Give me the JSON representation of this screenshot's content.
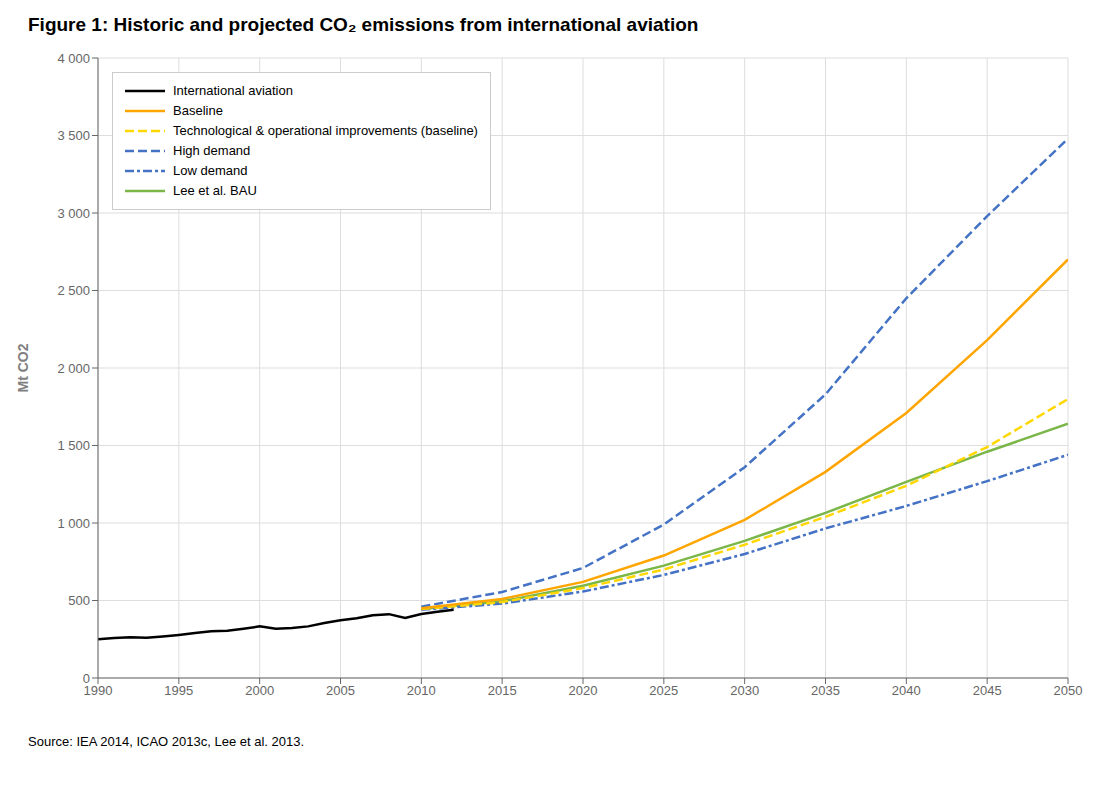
{
  "chart_data": {
    "type": "line",
    "title": "Figure 1: Historic and projected CO₂ emissions from international aviation",
    "annotations": [
      "Source: IEA 2014, ICAO 2013c, Lee et al. 2013."
    ],
    "y_label": "Mt CO2",
    "xlim": [
      1990,
      2050
    ],
    "ylim": [
      0,
      4000
    ],
    "xticks": [
      1990,
      1995,
      2000,
      2005,
      2010,
      2015,
      2020,
      2025,
      2030,
      2035,
      2040,
      2045,
      2050
    ],
    "yticks": [
      0,
      500,
      {
        "value": 1000,
        "label": "1 000"
      },
      {
        "value": 1500,
        "label": "1 500"
      },
      {
        "value": 2000,
        "label": "2 000"
      },
      {
        "value": 2500,
        "label": "2 500"
      },
      {
        "value": 3000,
        "label": "3 000"
      },
      {
        "value": 3500,
        "label": "3 500"
      },
      {
        "value": 4000,
        "label": "4 000"
      }
    ],
    "grid": true,
    "legend": "upper left",
    "series": [
      {
        "name": "International aviation",
        "color": "#000000",
        "line_style": "solid",
        "x": [
          1990,
          1991,
          1992,
          1993,
          1994,
          1995,
          1996,
          1997,
          1998,
          1999,
          2000,
          2001,
          2002,
          2003,
          2004,
          2005,
          2006,
          2007,
          2008,
          2009,
          2010,
          2011,
          2012
        ],
        "values": [
          250,
          258,
          263,
          260,
          268,
          278,
          290,
          302,
          305,
          318,
          333,
          318,
          322,
          333,
          355,
          372,
          385,
          405,
          412,
          387,
          413,
          428,
          440
        ]
      },
      {
        "name": "Baseline",
        "color": "#FFA500",
        "line_style": "solid",
        "x": [
          2010,
          2015,
          2020,
          2025,
          2030,
          2035,
          2040,
          2045,
          2050
        ],
        "values": [
          450,
          510,
          620,
          790,
          1020,
          1330,
          1710,
          2180,
          2700
        ]
      },
      {
        "name": "Technological & operational improvements (baseline)",
        "color": "#FFD700",
        "line_style": "dashed",
        "x": [
          2010,
          2015,
          2020,
          2025,
          2030,
          2035,
          2040,
          2045,
          2050
        ],
        "values": [
          445,
          490,
          580,
          700,
          860,
          1040,
          1240,
          1490,
          1800
        ]
      },
      {
        "name": "High demand",
        "color": "#4472C4",
        "line_style": "dashed",
        "x": [
          2010,
          2015,
          2020,
          2025,
          2030,
          2035,
          2040,
          2045,
          2050
        ],
        "values": [
          460,
          555,
          710,
          990,
          1360,
          1830,
          2450,
          2980,
          3480
        ]
      },
      {
        "name": "Low demand",
        "color": "#4472C4",
        "line_style": "dashdot",
        "x": [
          2010,
          2015,
          2020,
          2025,
          2030,
          2035,
          2040,
          2045,
          2050
        ],
        "values": [
          440,
          480,
          558,
          665,
          800,
          965,
          1110,
          1270,
          1440
        ]
      },
      {
        "name": "Lee et al. BAU",
        "color": "#7AB648",
        "line_style": "solid",
        "x": [
          2010,
          2015,
          2020,
          2025,
          2030,
          2035,
          2040,
          2045,
          2050
        ],
        "values": [
          445,
          495,
          595,
          725,
          885,
          1065,
          1265,
          1460,
          1640
        ]
      }
    ]
  }
}
